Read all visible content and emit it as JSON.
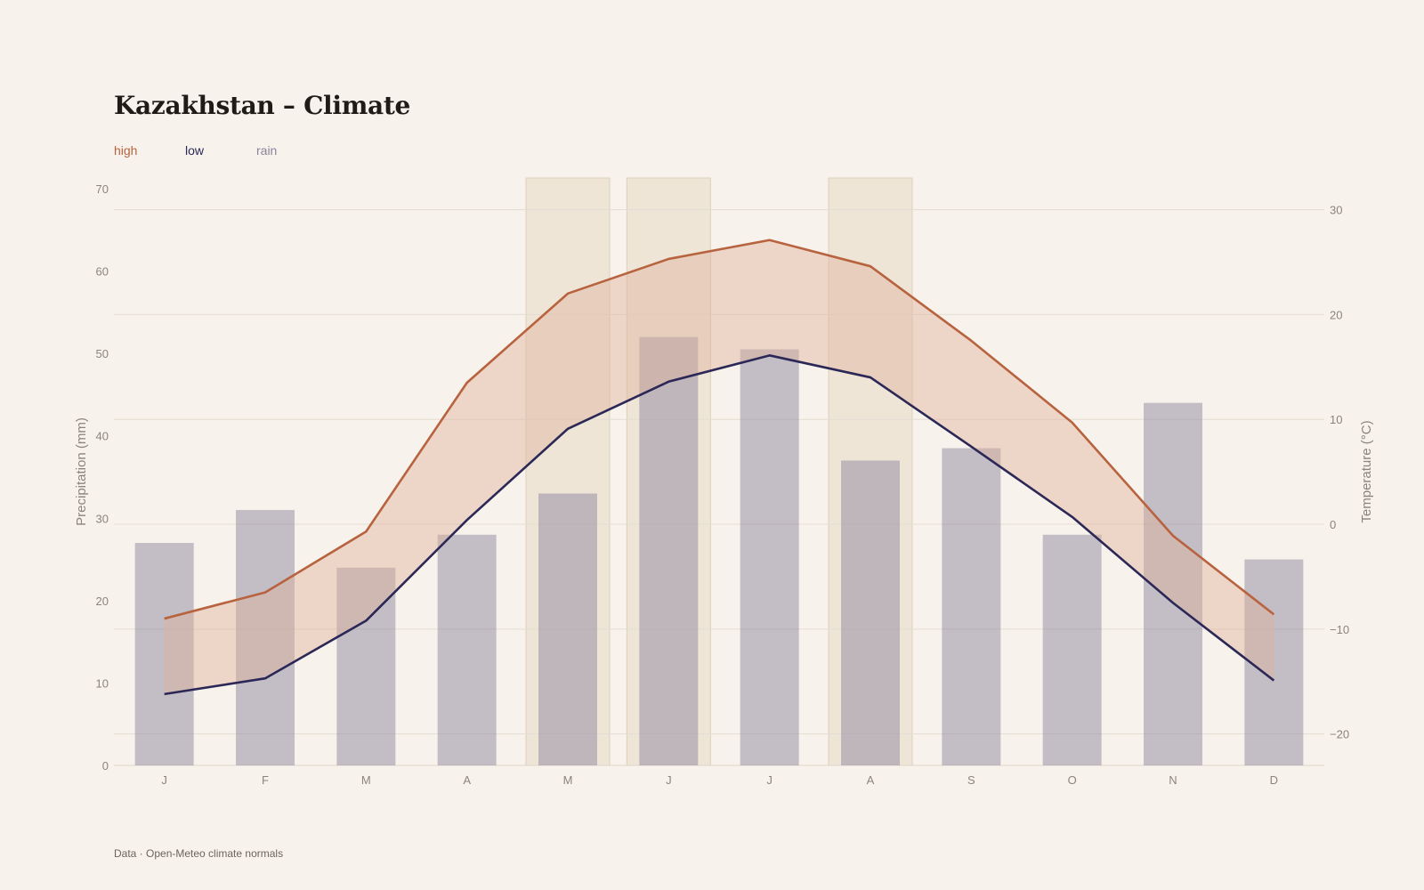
{
  "title": "Kazakhstan – Climate",
  "legend": {
    "high": "high",
    "low": "low",
    "rain": "rain"
  },
  "source": "Data · Open-Meteo climate normals",
  "colors": {
    "background": "#f7f2eb",
    "high": "#b8633f",
    "low": "#2b2857",
    "rain": "#8a849a",
    "band_fill": "#dfb29c",
    "highlight": "#e7dac6",
    "grid": "#e4ddd3"
  },
  "chart_data": {
    "type": "bar+line",
    "categories": [
      "J",
      "F",
      "M",
      "A",
      "M",
      "J",
      "J",
      "A",
      "S",
      "O",
      "N",
      "D"
    ],
    "highlighted_months": [
      4,
      5,
      7
    ],
    "precipitation": {
      "name": "rain",
      "axis": "left",
      "values": [
        27,
        31,
        24,
        28,
        33,
        52,
        50.5,
        37,
        38.5,
        28,
        44,
        25
      ]
    },
    "temperature_high": {
      "name": "high",
      "axis": "right",
      "values": [
        -9,
        -6.5,
        -0.7,
        13.5,
        22,
        25.3,
        27.1,
        24.6,
        17.5,
        9.7,
        -1.1,
        -8.6
      ]
    },
    "temperature_low": {
      "name": "low",
      "axis": "right",
      "values": [
        -16.2,
        -14.7,
        -9.2,
        0.4,
        9.1,
        13.6,
        16.1,
        14,
        7.4,
        0.7,
        -7.5,
        -14.9
      ]
    },
    "left_axis": {
      "label": "Precipitation (mm)",
      "ylim": [
        0,
        70
      ],
      "ticks": [
        0,
        10,
        20,
        30,
        40,
        50,
        60,
        70
      ]
    },
    "right_axis": {
      "label": "Temperature (°C)",
      "ylim": [
        -23,
        32
      ],
      "ticks": [
        -20,
        -10,
        0,
        10,
        20,
        30
      ],
      "tick_labels": [
        "−20",
        "−10",
        "0",
        "10",
        "20",
        "30"
      ]
    },
    "grid": true
  }
}
